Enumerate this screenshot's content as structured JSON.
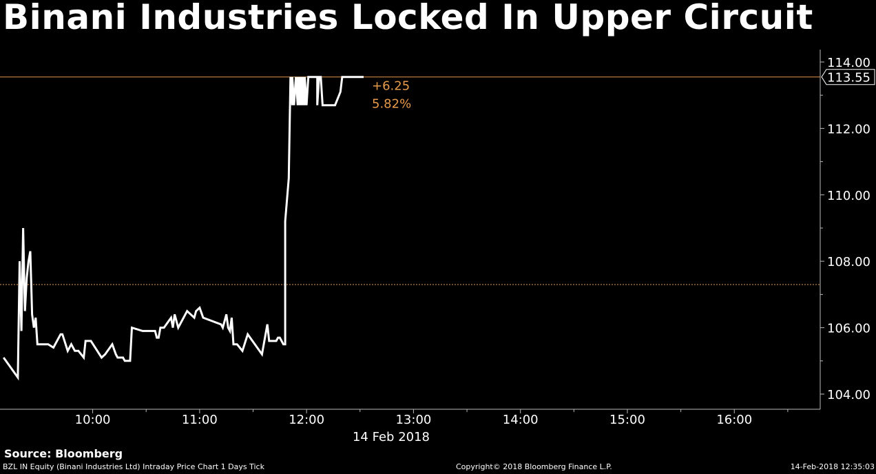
{
  "chart_data": {
    "type": "line",
    "title": "Binani Industries Locked In Upper Circuit",
    "x_label": "14 Feb 2018",
    "x_ticks": [
      "10:00",
      "11:00",
      "12:00",
      "13:00",
      "14:00",
      "15:00",
      "16:00"
    ],
    "y_ticks": [
      "104.00",
      "106.00",
      "108.00",
      "110.00",
      "112.00",
      "114.00"
    ],
    "ylim": [
      103.6,
      114.5
    ],
    "x_range": [
      "09:08",
      "16:30"
    ],
    "grid": false,
    "last_price": "113.55",
    "change": "+6.25",
    "change_pct": "5.82%",
    "previous_close": 107.3,
    "series": [
      {
        "x": [
          "09:10",
          "09:18",
          "09:19",
          "09:20",
          "09:21",
          "09:22",
          "09:23",
          "09:24",
          "09:25",
          "09:26",
          "09:27",
          "09:28",
          "09:29",
          "09:30",
          "09:31",
          "09:35",
          "09:38",
          "09:42",
          "09:43",
          "09:46",
          "09:48",
          "09:50",
          "09:52",
          "09:55",
          "09:56",
          "09:59",
          "10:05",
          "10:07",
          "10:11",
          "10:13",
          "10:14",
          "10:17",
          "10:18",
          "10:21",
          "10:22",
          "10:28",
          "10:29",
          "10:30",
          "10:31",
          "10:32",
          "10:34",
          "10:35",
          "10:36",
          "10:37",
          "10:38",
          "10:40",
          "10:44",
          "10:45",
          "10:46",
          "10:48",
          "10:53",
          "10:55",
          "10:57",
          "10:58",
          "11:00",
          "11:02",
          "11:12",
          "11:13",
          "11:15",
          "11:16",
          "11:17",
          "11:18",
          "11:19",
          "11:20",
          "11:21",
          "11:24",
          "11:27",
          "11:35",
          "11:38",
          "11:39",
          "11:40",
          "11:43",
          "11:44",
          "11:45",
          "11:47",
          "11:48",
          "11:48",
          "11:50",
          "11:51",
          "11:52",
          "11:52",
          "11:53",
          "11:54",
          "11:55",
          "11:55",
          "11:56",
          "11:56",
          "11:57",
          "11:57",
          "11:58",
          "11:58",
          "11:59",
          "11:59",
          "12:00",
          "12:01",
          "12:02",
          "12:03",
          "12:06",
          "12:06",
          "12:07",
          "12:08",
          "12:09",
          "12:10",
          "12:11",
          "12:12",
          "12:13",
          "12:14",
          "12:16",
          "12:19",
          "12:20",
          "12:21",
          "12:27",
          "12:27",
          "12:32"
        ],
        "y": [
          105.1,
          104.5,
          108.0,
          105.9,
          109.0,
          106.5,
          107.5,
          108.0,
          108.3,
          106.4,
          106.0,
          106.3,
          105.5,
          105.5,
          105.5,
          105.5,
          105.4,
          105.8,
          105.8,
          105.3,
          105.5,
          105.3,
          105.3,
          105.1,
          105.6,
          105.6,
          105.1,
          105.2,
          105.5,
          105.2,
          105.1,
          105.1,
          105.0,
          105.0,
          106.0,
          105.9,
          105.9,
          105.9,
          105.9,
          105.9,
          105.9,
          105.9,
          105.7,
          105.7,
          106.0,
          106.0,
          106.3,
          106.0,
          106.4,
          106.0,
          106.5,
          106.4,
          106.3,
          106.5,
          106.6,
          106.3,
          106.1,
          106.0,
          106.4,
          106.0,
          105.9,
          106.3,
          105.5,
          105.5,
          105.5,
          105.3,
          105.8,
          105.2,
          106.1,
          105.6,
          105.6,
          105.6,
          105.7,
          105.7,
          105.5,
          105.5,
          109.2,
          110.5,
          113.55,
          112.7,
          113.55,
          112.7,
          113.55,
          112.7,
          113.55,
          112.7,
          113.55,
          112.7,
          113.55,
          112.7,
          113.55,
          112.7,
          113.55,
          112.7,
          113.55,
          113.55,
          113.55,
          113.55,
          112.7,
          113.55,
          113.55,
          112.7,
          112.7,
          112.7,
          112.7,
          112.7,
          112.7,
          112.7,
          113.1,
          113.55,
          113.55,
          113.55,
          113.55,
          113.55
        ]
      }
    ]
  },
  "source": "Source: Bloomberg",
  "footer": {
    "left": "BZL IN Equity (Binani Industries Ltd) Intraday Price Chart 1 Days  Tick",
    "middle": "Copyright© 2018 Bloomberg Finance L.P.",
    "right": "14-Feb-2018 12:35:03"
  },
  "colors": {
    "background": "#000000",
    "line": "#ffffff",
    "accent": "#e69a4a",
    "axis": "#bbbbbb"
  }
}
